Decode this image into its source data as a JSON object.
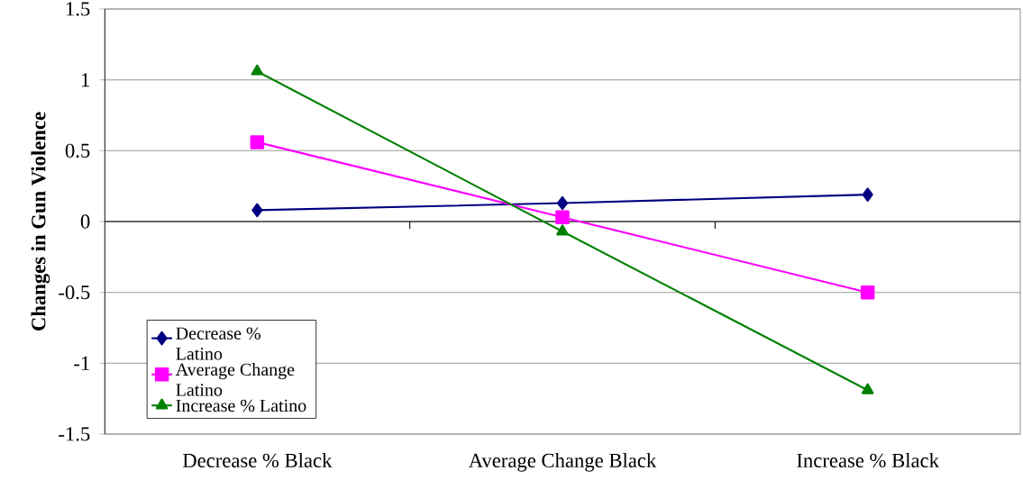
{
  "chart_data": {
    "type": "line",
    "ylabel": "Changes in Gun Violence",
    "categories": [
      "Decrease % Black",
      "Average Change Black",
      "Increase % Black"
    ],
    "series": [
      {
        "name": "Decrease % Latino",
        "color": "#000080",
        "marker": "diamond",
        "values": [
          0.08,
          0.13,
          0.19
        ]
      },
      {
        "name": "Average Change Latino",
        "color": "#ff00ff",
        "marker": "square",
        "values": [
          0.56,
          0.03,
          -0.5
        ]
      },
      {
        "name": "Increase % Latino",
        "color": "#008000",
        "marker": "triangle",
        "values": [
          1.06,
          -0.07,
          -1.19
        ]
      }
    ],
    "ylim": [
      -1.5,
      1.5
    ],
    "yticks": [
      -1.5,
      -1,
      -0.5,
      0,
      0.5,
      1,
      1.5
    ],
    "grid": "y",
    "legend": "bottom left",
    "line_style": "solid"
  }
}
